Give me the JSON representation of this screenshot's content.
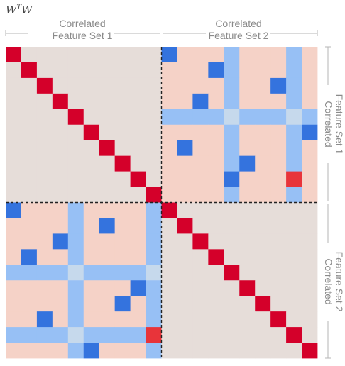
{
  "chart_data": {
    "type": "heatmap",
    "title_base": "W",
    "title_sup": "T",
    "title_tail": "W",
    "groups": [
      {
        "line1": "Correlated",
        "line2": "Feature Set 1"
      },
      {
        "line1": "Correlated",
        "line2": "Feature Set 2"
      }
    ],
    "rows": 20,
    "cols": 20,
    "block_size": 10,
    "values_note_scale": [
      -1,
      1
    ],
    "diagonal_value": 1.0,
    "within_block_background": 0.03,
    "cross_block_background": 0.15,
    "cross_block_bands": [
      {
        "block_row": 0,
        "block_col": 1,
        "band_rows": [
          4
        ],
        "band_cols": [
          4,
          8
        ]
      },
      {
        "block_row": 1,
        "block_col": 0,
        "band_rows": [
          4,
          8
        ],
        "band_cols": [
          4,
          9
        ]
      }
    ],
    "cross_block_strong_negative": [
      {
        "r": 0,
        "c": 10
      },
      {
        "r": 1,
        "c": 13
      },
      {
        "r": 2,
        "c": 17
      },
      {
        "r": 3,
        "c": 12
      },
      {
        "r": 5,
        "c": 19
      },
      {
        "r": 6,
        "c": 11
      },
      {
        "r": 7,
        "c": 15
      },
      {
        "r": 8,
        "c": 14
      },
      {
        "r": 10,
        "c": 0
      },
      {
        "r": 11,
        "c": 6
      },
      {
        "r": 12,
        "c": 3
      },
      {
        "r": 13,
        "c": 1
      },
      {
        "r": 15,
        "c": 8
      },
      {
        "r": 16,
        "c": 7
      },
      {
        "r": 17,
        "c": 2
      },
      {
        "r": 19,
        "c": 5
      }
    ],
    "cross_block_strong_positive": [
      {
        "r": 8,
        "c": 18
      },
      {
        "r": 18,
        "c": 9
      }
    ],
    "colors": {
      "diagonal": "#d4002a",
      "strong_positive": "#e8343a",
      "within_block": "#e6ddd9",
      "cross_block_bg": "#f5d2c7",
      "band": "#97c0f5",
      "band_cross": "#c6d9ec",
      "strong_negative": "#3473de",
      "separator": "#222222",
      "bracket": "#b5b5b5"
    }
  }
}
